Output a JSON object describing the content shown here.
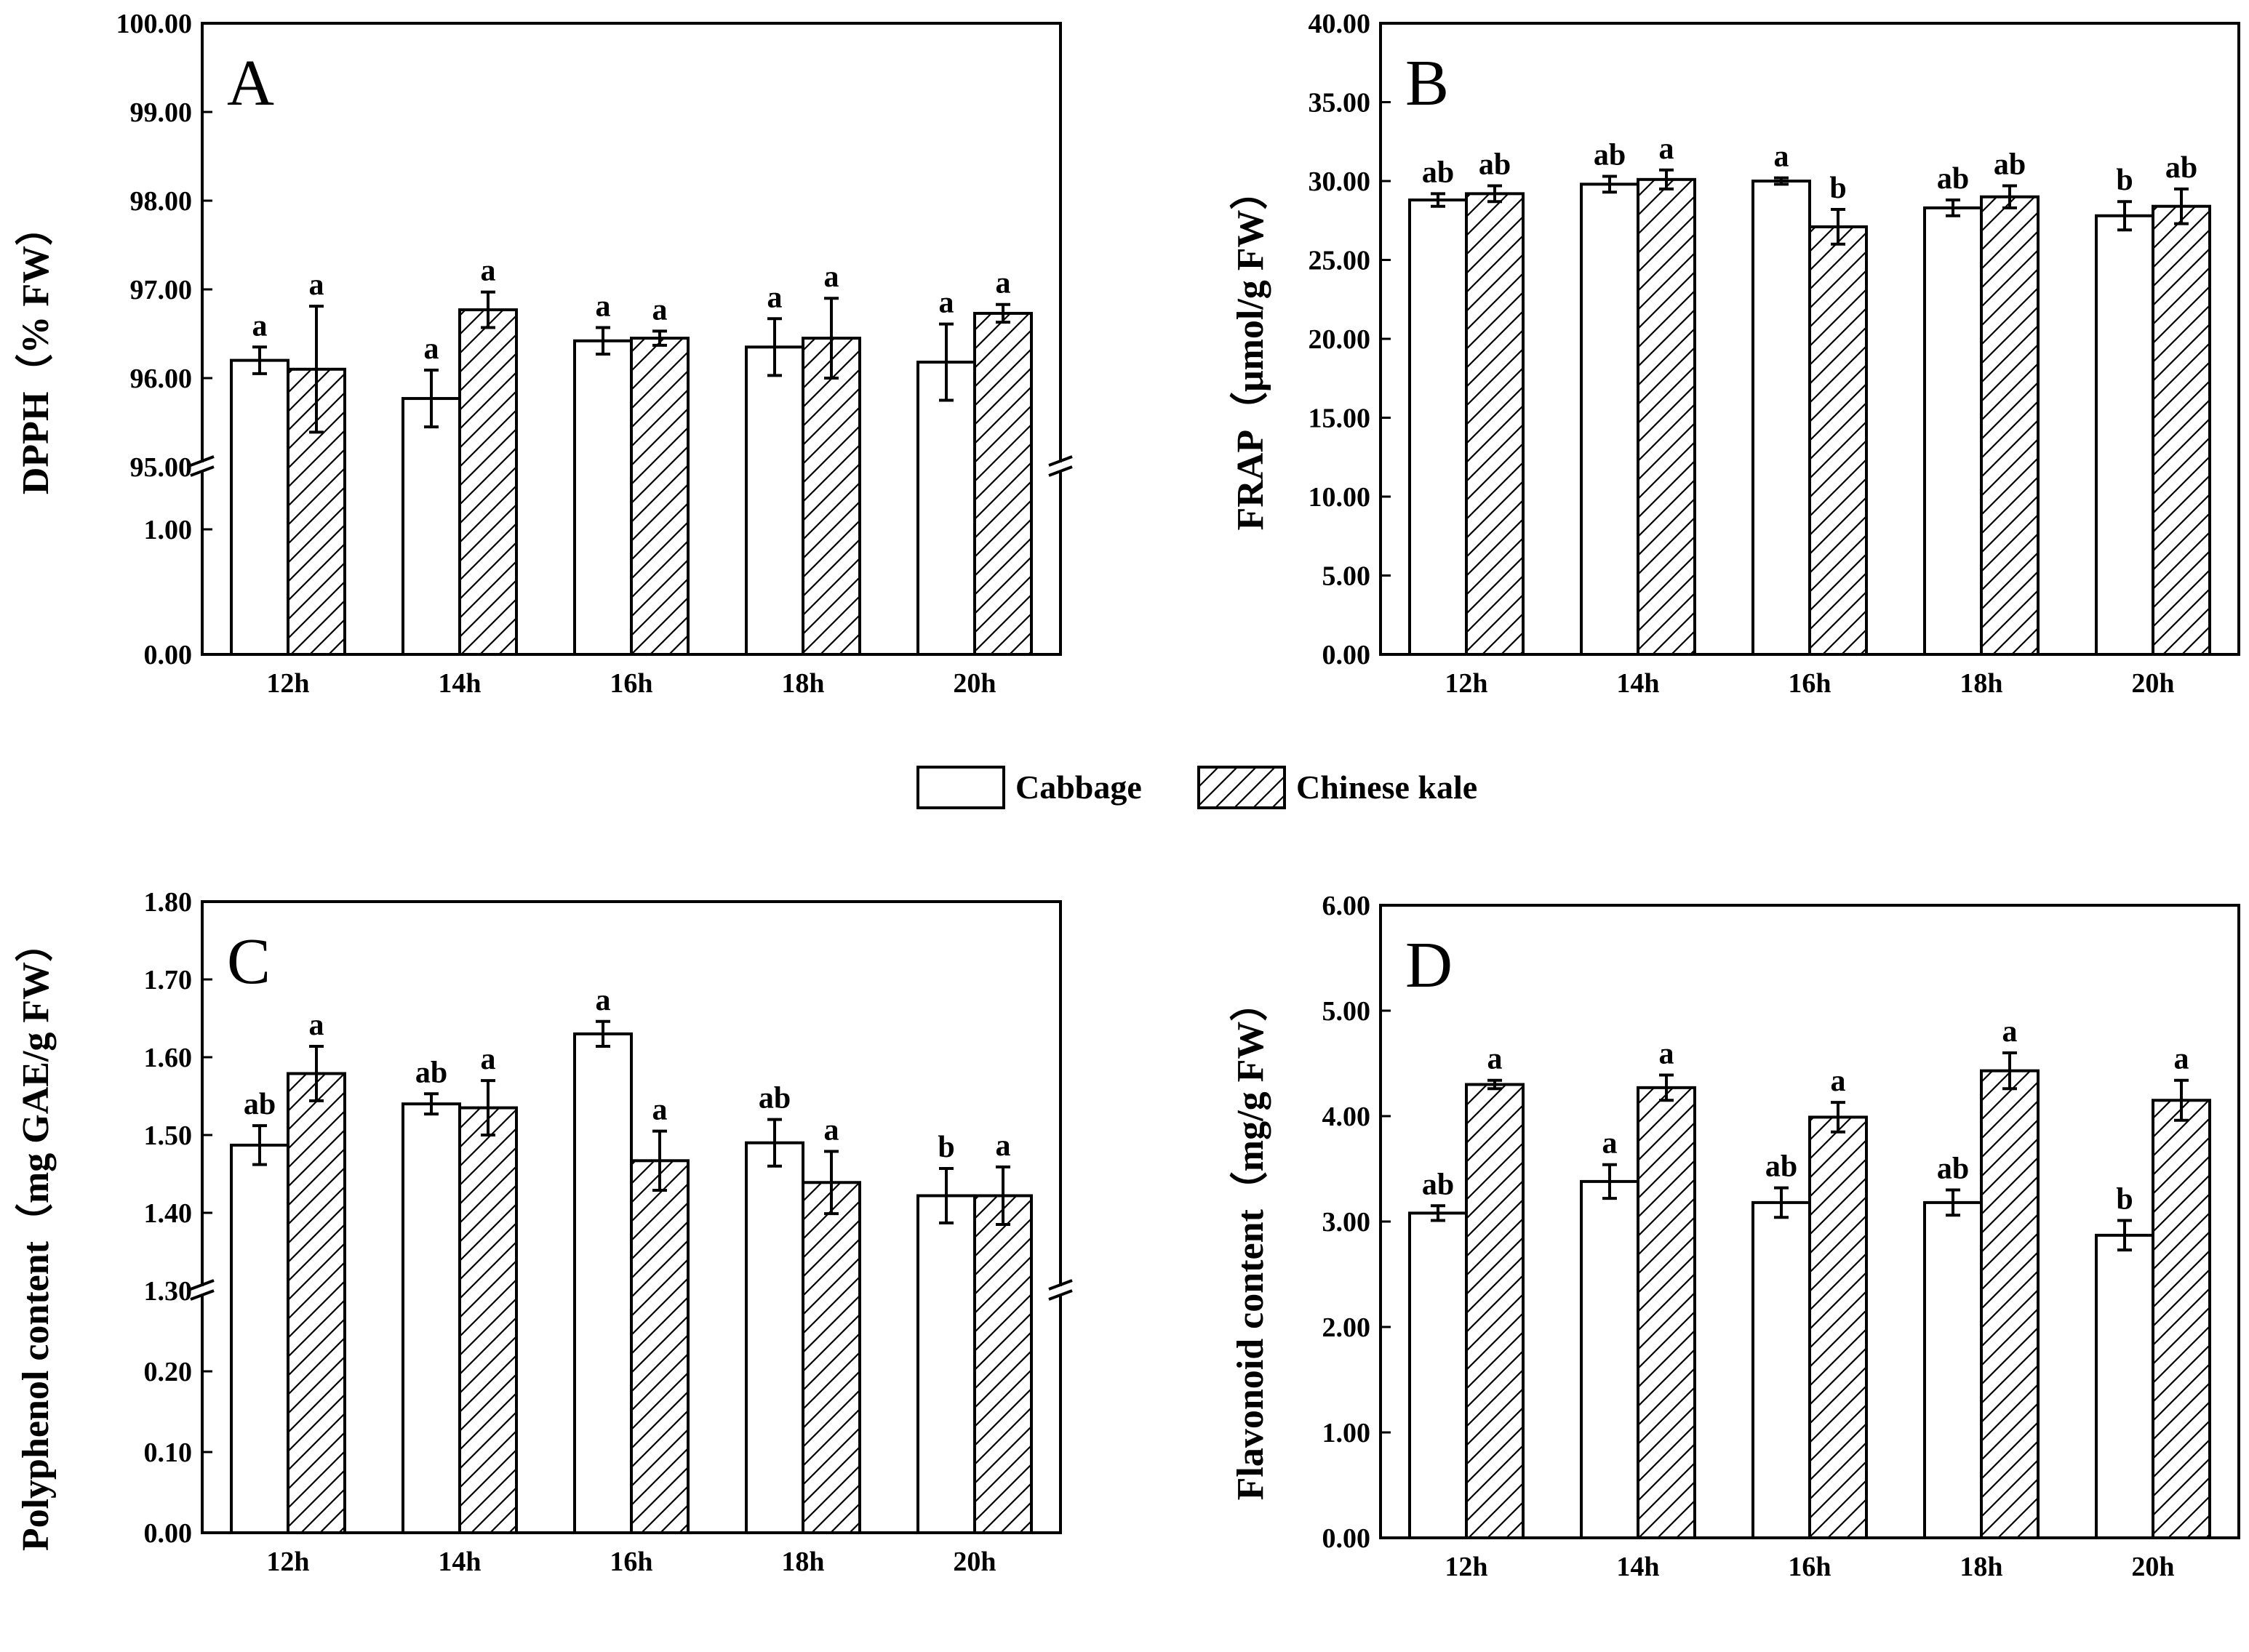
{
  "chart_data": [
    {
      "type": "bar",
      "panel_label": "A",
      "ylabel": "DPPH（% FW）",
      "categories": [
        "12h",
        "14h",
        "16h",
        "18h",
        "20h"
      ],
      "broken_axis": true,
      "lower_range": [
        0,
        1.5
      ],
      "upper_range": [
        95,
        100
      ],
      "yticks_lower": [
        "0.00",
        "1.00"
      ],
      "yticks_upper": [
        "95.00",
        "96.00",
        "97.00",
        "98.00",
        "99.00",
        "100.00"
      ],
      "series": [
        {
          "name": "Cabbage",
          "values": [
            96.2,
            95.77,
            96.42,
            96.35,
            96.18
          ],
          "errors": [
            0.15,
            0.32,
            0.15,
            0.32,
            0.43
          ],
          "letters": [
            "a",
            "a",
            "a",
            "a",
            "a"
          ]
        },
        {
          "name": "Chinese kale",
          "values": [
            96.1,
            96.77,
            96.45,
            96.45,
            96.73
          ],
          "errors": [
            0.71,
            0.2,
            0.08,
            0.45,
            0.1
          ],
          "letters": [
            "a",
            "a",
            "a",
            "a",
            "a"
          ]
        }
      ]
    },
    {
      "type": "bar",
      "panel_label": "B",
      "ylabel": "FRAP（μmol/g FW）",
      "categories": [
        "12h",
        "14h",
        "16h",
        "18h",
        "20h"
      ],
      "broken_axis": false,
      "ylim": [
        0,
        40
      ],
      "yticks": [
        "0.00",
        "5.00",
        "10.00",
        "15.00",
        "20.00",
        "25.00",
        "30.00",
        "35.00",
        "40.00"
      ],
      "series": [
        {
          "name": "Cabbage",
          "values": [
            28.8,
            29.8,
            30.0,
            28.3,
            27.8
          ],
          "errors": [
            0.4,
            0.5,
            0.2,
            0.5,
            0.9
          ],
          "letters": [
            "ab",
            "ab",
            "a",
            "ab",
            "b"
          ]
        },
        {
          "name": "Chinese kale",
          "values": [
            29.2,
            30.1,
            27.1,
            29.0,
            28.4
          ],
          "errors": [
            0.5,
            0.6,
            1.1,
            0.7,
            1.1
          ],
          "letters": [
            "ab",
            "a",
            "b",
            "ab",
            "ab"
          ]
        }
      ]
    },
    {
      "type": "bar",
      "panel_label": "C",
      "ylabel": "Polyphenol content（mg GAE/g FW）",
      "categories": [
        "12h",
        "14h",
        "16h",
        "18h",
        "20h"
      ],
      "broken_axis": true,
      "lower_range": [
        0,
        0.3
      ],
      "upper_range": [
        1.3,
        1.8
      ],
      "yticks_lower": [
        "0.00",
        "0.10",
        "0.20"
      ],
      "yticks_upper": [
        "1.30",
        "1.40",
        "1.50",
        "1.60",
        "1.70",
        "1.80"
      ],
      "series": [
        {
          "name": "Cabbage",
          "values": [
            1.487,
            1.54,
            1.63,
            1.49,
            1.422
          ],
          "errors": [
            0.025,
            0.013,
            0.016,
            0.03,
            0.035
          ],
          "letters": [
            "ab",
            "ab",
            "a",
            "ab",
            "b"
          ]
        },
        {
          "name": "Chinese kale",
          "values": [
            1.579,
            1.535,
            1.467,
            1.439,
            1.422
          ],
          "errors": [
            0.035,
            0.035,
            0.038,
            0.04,
            0.037
          ],
          "letters": [
            "a",
            "a",
            "a",
            "a",
            "a"
          ]
        }
      ]
    },
    {
      "type": "bar",
      "panel_label": "D",
      "ylabel": "Flavonoid content（mg/g FW）",
      "categories": [
        "12h",
        "14h",
        "16h",
        "18h",
        "20h"
      ],
      "broken_axis": false,
      "ylim": [
        0,
        6
      ],
      "yticks": [
        "0.00",
        "1.00",
        "2.00",
        "3.00",
        "4.00",
        "5.00",
        "6.00"
      ],
      "series": [
        {
          "name": "Cabbage",
          "values": [
            3.08,
            3.38,
            3.18,
            3.18,
            2.87
          ],
          "errors": [
            0.07,
            0.16,
            0.14,
            0.12,
            0.14
          ],
          "letters": [
            "ab",
            "a",
            "ab",
            "ab",
            "b"
          ]
        },
        {
          "name": "Chinese kale",
          "values": [
            4.3,
            4.27,
            3.99,
            4.43,
            4.15
          ],
          "errors": [
            0.04,
            0.12,
            0.14,
            0.17,
            0.19
          ],
          "letters": [
            "a",
            "a",
            "a",
            "a",
            "a"
          ]
        }
      ]
    }
  ],
  "legend": {
    "items": [
      "Cabbage",
      "Chinese kale"
    ]
  }
}
